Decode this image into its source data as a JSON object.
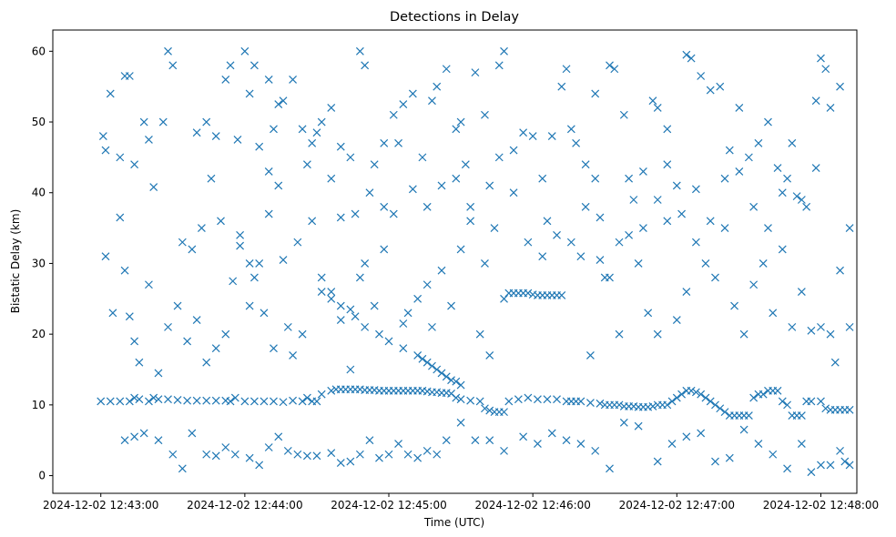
{
  "chart_data": {
    "type": "scatter",
    "title": "Detections in Delay",
    "xlabel": "Time (UTC)",
    "ylabel": "Bistatic Delay (km)",
    "marker": "x",
    "color": "#1f77b4",
    "x_unit": "seconds since 2024-12-02 12:43:00",
    "xlim": [
      -20,
      315
    ],
    "ylim": [
      -2.5,
      63
    ],
    "x_ticks": [
      0,
      60,
      120,
      180,
      240,
      300
    ],
    "x_tick_labels": [
      "2024-12-02 12:43:00",
      "2024-12-02 12:44:00",
      "2024-12-02 12:45:00",
      "2024-12-02 12:46:00",
      "2024-12-02 12:47:00",
      "2024-12-02 12:48:00"
    ],
    "y_ticks": [
      0,
      10,
      20,
      30,
      40,
      50,
      60
    ],
    "y_tick_labels": [
      "0",
      "10",
      "20",
      "30",
      "40",
      "50",
      "60"
    ],
    "points": [
      [
        1,
        48
      ],
      [
        2,
        46
      ],
      [
        4,
        54
      ],
      [
        8,
        45
      ],
      [
        10,
        56.5
      ],
      [
        12,
        56.5
      ],
      [
        14,
        44
      ],
      [
        18,
        50
      ],
      [
        22,
        40.8
      ],
      [
        28,
        60
      ],
      [
        30,
        58
      ],
      [
        34,
        33
      ],
      [
        38,
        32
      ],
      [
        40,
        48.5
      ],
      [
        44,
        50
      ],
      [
        48,
        48
      ],
      [
        52,
        56
      ],
      [
        54,
        58
      ],
      [
        57,
        47.5
      ],
      [
        60,
        60
      ],
      [
        62,
        54
      ],
      [
        64,
        58
      ],
      [
        66,
        46.5
      ],
      [
        70,
        56
      ],
      [
        72,
        49
      ],
      [
        74,
        52.5
      ],
      [
        76,
        53
      ],
      [
        80,
        56
      ],
      [
        84,
        49
      ],
      [
        88,
        47
      ],
      [
        90,
        48.5
      ],
      [
        96,
        42
      ],
      [
        100,
        36.5
      ],
      [
        104,
        45
      ],
      [
        108,
        60
      ],
      [
        110,
        58
      ],
      [
        114,
        44
      ],
      [
        118,
        47
      ],
      [
        122,
        51
      ],
      [
        126,
        52.5
      ],
      [
        130,
        54
      ],
      [
        134,
        45
      ],
      [
        138,
        53
      ],
      [
        140,
        55
      ],
      [
        144,
        57.5
      ],
      [
        148,
        49
      ],
      [
        150,
        50
      ],
      [
        152,
        44
      ],
      [
        156,
        57
      ],
      [
        160,
        51
      ],
      [
        162,
        41
      ],
      [
        166,
        58
      ],
      [
        168,
        60
      ],
      [
        172,
        46
      ],
      [
        176,
        48.5
      ],
      [
        180,
        48
      ],
      [
        184,
        42
      ],
      [
        186,
        36
      ],
      [
        188,
        48
      ],
      [
        192,
        55
      ],
      [
        194,
        57.5
      ],
      [
        198,
        47
      ],
      [
        202,
        44
      ],
      [
        206,
        54
      ],
      [
        208,
        36.5
      ],
      [
        212,
        58
      ],
      [
        214,
        57.5
      ],
      [
        218,
        51
      ],
      [
        222,
        39
      ],
      [
        226,
        43
      ],
      [
        230,
        53
      ],
      [
        232,
        52
      ],
      [
        236,
        49
      ],
      [
        240,
        41
      ],
      [
        244,
        59.5
      ],
      [
        246,
        59
      ],
      [
        250,
        56.5
      ],
      [
        254,
        54.5
      ],
      [
        258,
        55
      ],
      [
        262,
        46
      ],
      [
        266,
        52
      ],
      [
        270,
        45
      ],
      [
        274,
        47
      ],
      [
        278,
        50
      ],
      [
        282,
        43.5
      ],
      [
        286,
        42
      ],
      [
        290,
        39.5
      ],
      [
        294,
        38
      ],
      [
        298,
        53
      ],
      [
        300,
        59
      ],
      [
        302,
        57.5
      ],
      [
        2,
        31
      ],
      [
        5,
        23
      ],
      [
        8,
        36.5
      ],
      [
        10,
        29
      ],
      [
        12,
        22.5
      ],
      [
        14,
        19
      ],
      [
        16,
        16
      ],
      [
        20,
        27
      ],
      [
        24,
        14.5
      ],
      [
        28,
        21
      ],
      [
        32,
        24
      ],
      [
        36,
        19
      ],
      [
        40,
        22
      ],
      [
        44,
        16
      ],
      [
        48,
        18
      ],
      [
        52,
        20
      ],
      [
        55,
        27.5
      ],
      [
        58,
        32.5
      ],
      [
        62,
        30
      ],
      [
        64,
        28
      ],
      [
        68,
        23
      ],
      [
        70,
        37
      ],
      [
        72,
        18
      ],
      [
        76,
        30.5
      ],
      [
        80,
        17
      ],
      [
        84,
        20
      ],
      [
        88,
        36
      ],
      [
        92,
        28
      ],
      [
        96,
        26
      ],
      [
        100,
        22
      ],
      [
        104,
        15
      ],
      [
        108,
        28
      ],
      [
        110,
        30
      ],
      [
        114,
        24
      ],
      [
        118,
        32
      ],
      [
        122,
        37
      ],
      [
        126,
        21.5
      ],
      [
        128,
        23
      ],
      [
        132,
        25
      ],
      [
        136,
        27
      ],
      [
        138,
        21
      ],
      [
        142,
        29
      ],
      [
        146,
        24
      ],
      [
        150,
        32
      ],
      [
        154,
        36
      ],
      [
        158,
        20
      ],
      [
        162,
        17
      ],
      [
        164,
        35
      ],
      [
        168,
        25
      ],
      [
        170,
        25.8
      ],
      [
        172,
        25.8
      ],
      [
        174,
        25.8
      ],
      [
        176,
        25.8
      ],
      [
        178,
        25.8
      ],
      [
        180,
        25.6
      ],
      [
        182,
        25.5
      ],
      [
        184,
        25.5
      ],
      [
        186,
        25.5
      ],
      [
        188,
        25.5
      ],
      [
        190,
        25.5
      ],
      [
        192,
        25.5
      ],
      [
        196,
        33
      ],
      [
        200,
        31
      ],
      [
        204,
        17
      ],
      [
        208,
        30.5
      ],
      [
        212,
        28
      ],
      [
        216,
        20
      ],
      [
        220,
        34
      ],
      [
        224,
        30
      ],
      [
        228,
        23
      ],
      [
        232,
        20
      ],
      [
        236,
        36
      ],
      [
        240,
        22
      ],
      [
        244,
        26
      ],
      [
        248,
        33
      ],
      [
        252,
        30
      ],
      [
        256,
        28
      ],
      [
        260,
        35
      ],
      [
        264,
        24
      ],
      [
        268,
        20
      ],
      [
        272,
        27
      ],
      [
        276,
        30
      ],
      [
        280,
        23
      ],
      [
        284,
        32
      ],
      [
        288,
        21
      ],
      [
        292,
        26
      ],
      [
        296,
        20.5
      ],
      [
        300,
        21
      ],
      [
        304,
        20
      ],
      [
        306,
        16
      ],
      [
        308,
        29
      ],
      [
        312,
        21
      ],
      [
        0,
        10.5
      ],
      [
        4,
        10.5
      ],
      [
        8,
        10.5
      ],
      [
        12,
        10.5
      ],
      [
        14,
        11
      ],
      [
        16,
        10.8
      ],
      [
        20,
        10.5
      ],
      [
        22,
        11
      ],
      [
        24,
        10.8
      ],
      [
        28,
        10.8
      ],
      [
        32,
        10.7
      ],
      [
        36,
        10.6
      ],
      [
        40,
        10.6
      ],
      [
        44,
        10.6
      ],
      [
        48,
        10.6
      ],
      [
        52,
        10.6
      ],
      [
        54,
        10.5
      ],
      [
        56,
        11
      ],
      [
        60,
        10.5
      ],
      [
        64,
        10.5
      ],
      [
        68,
        10.5
      ],
      [
        72,
        10.5
      ],
      [
        76,
        10.4
      ],
      [
        80,
        10.6
      ],
      [
        84,
        10.5
      ],
      [
        86,
        11
      ],
      [
        88,
        10.5
      ],
      [
        90,
        10.5
      ],
      [
        92,
        11.5
      ],
      [
        96,
        12
      ],
      [
        98,
        12.2
      ],
      [
        100,
        12.2
      ],
      [
        102,
        12.2
      ],
      [
        104,
        12.2
      ],
      [
        106,
        12.2
      ],
      [
        108,
        12.2
      ],
      [
        110,
        12.1
      ],
      [
        112,
        12.1
      ],
      [
        114,
        12.1
      ],
      [
        116,
        12
      ],
      [
        118,
        12
      ],
      [
        120,
        12
      ],
      [
        122,
        12
      ],
      [
        124,
        12
      ],
      [
        126,
        12
      ],
      [
        128,
        12
      ],
      [
        130,
        12
      ],
      [
        132,
        12
      ],
      [
        134,
        12
      ],
      [
        136,
        11.9
      ],
      [
        138,
        11.8
      ],
      [
        140,
        11.8
      ],
      [
        142,
        11.7
      ],
      [
        144,
        11.7
      ],
      [
        146,
        11.6
      ],
      [
        148,
        11
      ],
      [
        150,
        10.8
      ],
      [
        154,
        10.6
      ],
      [
        158,
        10.5
      ],
      [
        160,
        9.5
      ],
      [
        162,
        9.2
      ],
      [
        164,
        9
      ],
      [
        166,
        9
      ],
      [
        168,
        9
      ],
      [
        170,
        10.5
      ],
      [
        174,
        10.8
      ],
      [
        178,
        11
      ],
      [
        182,
        10.8
      ],
      [
        186,
        10.8
      ],
      [
        190,
        10.8
      ],
      [
        194,
        10.5
      ],
      [
        196,
        10.5
      ],
      [
        198,
        10.5
      ],
      [
        200,
        10.5
      ],
      [
        204,
        10.3
      ],
      [
        208,
        10.2
      ],
      [
        210,
        10
      ],
      [
        212,
        10
      ],
      [
        214,
        10
      ],
      [
        216,
        10
      ],
      [
        218,
        9.8
      ],
      [
        220,
        9.8
      ],
      [
        222,
        9.8
      ],
      [
        224,
        9.7
      ],
      [
        226,
        9.7
      ],
      [
        228,
        9.7
      ],
      [
        230,
        9.8
      ],
      [
        232,
        10
      ],
      [
        234,
        10
      ],
      [
        236,
        10
      ],
      [
        238,
        10.5
      ],
      [
        240,
        11
      ],
      [
        242,
        11.5
      ],
      [
        244,
        12
      ],
      [
        246,
        12
      ],
      [
        248,
        11.8
      ],
      [
        250,
        11.5
      ],
      [
        252,
        11
      ],
      [
        254,
        10.5
      ],
      [
        256,
        10
      ],
      [
        258,
        9.5
      ],
      [
        260,
        9
      ],
      [
        262,
        8.5
      ],
      [
        264,
        8.5
      ],
      [
        266,
        8.5
      ],
      [
        268,
        8.5
      ],
      [
        270,
        8.5
      ],
      [
        272,
        11
      ],
      [
        274,
        11.5
      ],
      [
        276,
        11.5
      ],
      [
        278,
        12
      ],
      [
        280,
        12
      ],
      [
        282,
        12
      ],
      [
        284,
        10.5
      ],
      [
        286,
        10
      ],
      [
        288,
        8.5
      ],
      [
        290,
        8.5
      ],
      [
        292,
        8.5
      ],
      [
        294,
        10.5
      ],
      [
        296,
        10.5
      ],
      [
        300,
        10.5
      ],
      [
        302,
        9.5
      ],
      [
        304,
        9.3
      ],
      [
        306,
        9.3
      ],
      [
        308,
        9.3
      ],
      [
        310,
        9.3
      ],
      [
        312,
        9.3
      ],
      [
        136,
        16
      ],
      [
        138,
        15.5
      ],
      [
        140,
        15
      ],
      [
        142,
        14.5
      ],
      [
        144,
        14
      ],
      [
        146,
        13.5
      ],
      [
        148,
        13.3
      ],
      [
        150,
        12.8
      ],
      [
        134,
        16.5
      ],
      [
        132,
        17
      ],
      [
        126,
        18
      ],
      [
        120,
        19
      ],
      [
        116,
        20
      ],
      [
        110,
        21
      ],
      [
        106,
        22.5
      ],
      [
        104,
        23.5
      ],
      [
        100,
        24
      ],
      [
        96,
        25
      ],
      [
        92,
        26
      ],
      [
        10,
        5
      ],
      [
        14,
        5.5
      ],
      [
        18,
        6
      ],
      [
        24,
        5
      ],
      [
        30,
        3
      ],
      [
        34,
        1
      ],
      [
        38,
        6
      ],
      [
        44,
        3
      ],
      [
        48,
        2.8
      ],
      [
        52,
        4
      ],
      [
        56,
        3
      ],
      [
        62,
        2.5
      ],
      [
        66,
        1.5
      ],
      [
        70,
        4
      ],
      [
        74,
        5.5
      ],
      [
        78,
        3.5
      ],
      [
        82,
        3
      ],
      [
        86,
        2.8
      ],
      [
        90,
        2.8
      ],
      [
        96,
        3.2
      ],
      [
        100,
        1.8
      ],
      [
        104,
        2
      ],
      [
        108,
        3
      ],
      [
        112,
        5
      ],
      [
        116,
        2.5
      ],
      [
        120,
        3
      ],
      [
        124,
        4.5
      ],
      [
        128,
        3
      ],
      [
        132,
        2.5
      ],
      [
        136,
        3.5
      ],
      [
        140,
        3
      ],
      [
        144,
        5
      ],
      [
        150,
        7.5
      ],
      [
        156,
        5
      ],
      [
        162,
        5
      ],
      [
        168,
        3.5
      ],
      [
        176,
        5.5
      ],
      [
        182,
        4.5
      ],
      [
        188,
        6
      ],
      [
        194,
        5
      ],
      [
        200,
        4.5
      ],
      [
        206,
        3.5
      ],
      [
        212,
        1
      ],
      [
        218,
        7.5
      ],
      [
        224,
        7
      ],
      [
        232,
        2
      ],
      [
        238,
        4.5
      ],
      [
        244,
        5.5
      ],
      [
        250,
        6
      ],
      [
        256,
        2
      ],
      [
        262,
        2.5
      ],
      [
        268,
        6.5
      ],
      [
        274,
        4.5
      ],
      [
        280,
        3
      ],
      [
        286,
        1
      ],
      [
        292,
        4.5
      ],
      [
        296,
        0.5
      ],
      [
        300,
        1.5
      ],
      [
        304,
        1.5
      ],
      [
        308,
        3.5
      ],
      [
        310,
        2
      ],
      [
        312,
        1.5
      ],
      [
        20,
        47.5
      ],
      [
        26,
        50
      ],
      [
        42,
        35
      ],
      [
        46,
        42
      ],
      [
        50,
        36
      ],
      [
        58,
        34
      ],
      [
        62,
        24
      ],
      [
        66,
        30
      ],
      [
        70,
        43
      ],
      [
        74,
        41
      ],
      [
        78,
        21
      ],
      [
        82,
        33
      ],
      [
        86,
        44
      ],
      [
        92,
        50
      ],
      [
        96,
        52
      ],
      [
        100,
        46.5
      ],
      [
        106,
        37
      ],
      [
        112,
        40
      ],
      [
        118,
        38
      ],
      [
        124,
        47
      ],
      [
        130,
        40.5
      ],
      [
        136,
        38
      ],
      [
        142,
        41
      ],
      [
        148,
        42
      ],
      [
        154,
        38
      ],
      [
        160,
        30
      ],
      [
        166,
        45
      ],
      [
        172,
        40
      ],
      [
        178,
        33
      ],
      [
        184,
        31
      ],
      [
        190,
        34
      ],
      [
        196,
        49
      ],
      [
        202,
        38
      ],
      [
        206,
        42
      ],
      [
        210,
        28
      ],
      [
        216,
        33
      ],
      [
        220,
        42
      ],
      [
        226,
        35
      ],
      [
        232,
        39
      ],
      [
        236,
        44
      ],
      [
        242,
        37
      ],
      [
        248,
        40.5
      ],
      [
        254,
        36
      ],
      [
        260,
        42
      ],
      [
        266,
        43
      ],
      [
        272,
        38
      ],
      [
        278,
        35
      ],
      [
        284,
        40
      ],
      [
        288,
        47
      ],
      [
        292,
        39
      ],
      [
        298,
        43.5
      ],
      [
        304,
        52
      ],
      [
        308,
        55
      ],
      [
        312,
        35
      ]
    ]
  }
}
